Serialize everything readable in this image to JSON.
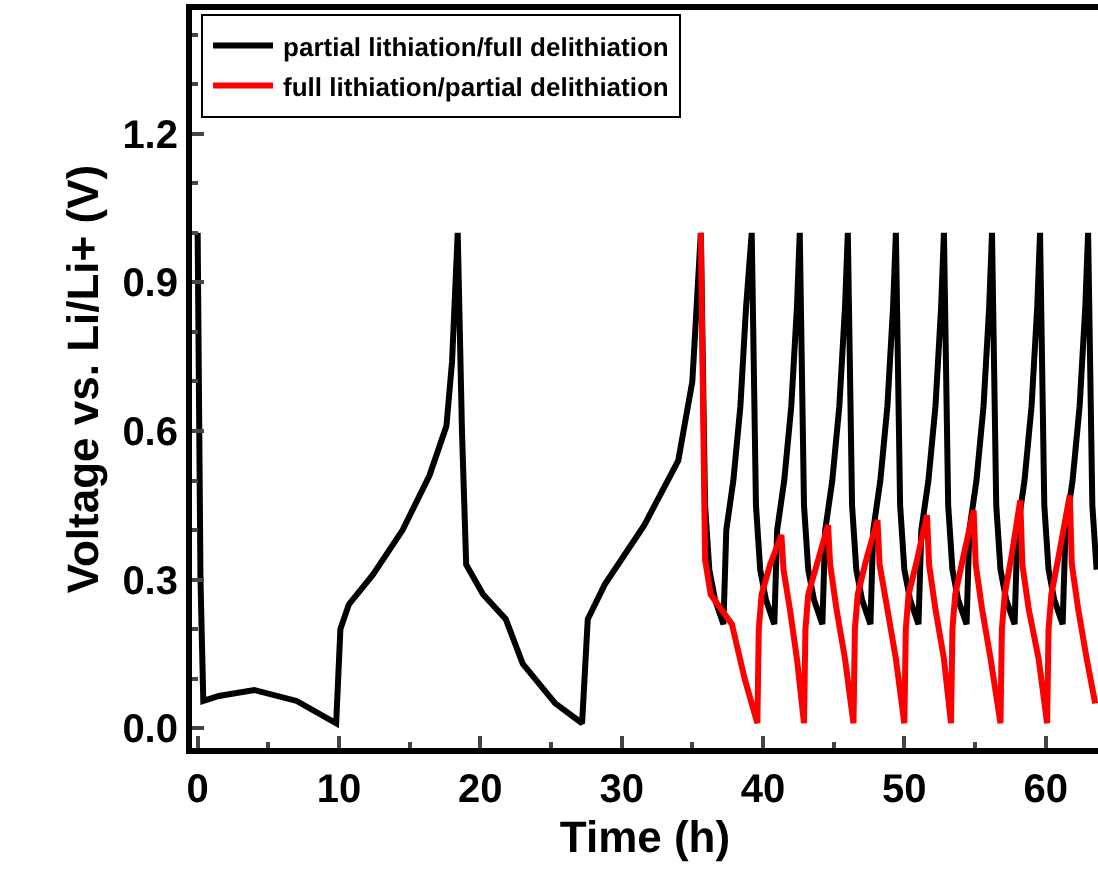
{
  "chart_data": {
    "type": "line",
    "xlabel": "Time (h)",
    "ylabel": "Voltage vs. Li/Li+ (V)",
    "xlim": [
      -0.4,
      63.7
    ],
    "xticks": [
      0,
      10,
      20,
      30,
      40,
      50,
      60
    ],
    "ylim": [
      -0.04,
      1.45
    ],
    "yticks": [
      {
        "value": 0,
        "label": "0.0"
      },
      0.3,
      0.6,
      0.9,
      1.2
    ],
    "grid": false,
    "legend": "top left",
    "line_style": "solid",
    "marker": "none",
    "series": [
      {
        "name": "partial lithiation/full delithiation",
        "color": "#000000",
        "x": [
          0,
          0.2,
          0.4,
          1.5,
          4,
          7,
          9.8,
          10.1,
          10.7,
          12.4,
          14.5,
          16.4,
          17.6,
          18.0,
          18.4,
          18.7,
          19.0,
          20.2,
          21.8,
          23.0,
          25.3,
          27.2,
          27.6,
          28.8,
          31.6,
          34.0,
          35.0,
          35.6,
          35.9,
          36.2,
          36.6,
          37.2,
          37.4,
          37.9,
          38.4,
          38.8,
          39.2,
          39.5,
          39.8,
          40.2,
          40.8,
          41.0,
          41.5,
          42.0,
          42.4,
          42.6,
          42.9,
          43.2,
          43.6,
          44.2,
          44.4,
          44.9,
          45.4,
          45.8,
          46.0,
          46.3,
          46.6,
          47.0,
          47.6,
          47.8,
          48.3,
          48.8,
          49.2,
          49.4,
          49.7,
          50.0,
          50.4,
          51.0,
          51.2,
          51.7,
          52.2,
          52.6,
          52.8,
          53.1,
          53.4,
          53.8,
          54.4,
          54.6,
          55.1,
          55.6,
          56.0,
          56.2,
          56.5,
          56.8,
          57.2,
          57.8,
          58.0,
          58.5,
          59.0,
          59.4,
          59.6,
          59.9,
          60.2,
          60.6,
          61.2,
          61.4,
          61.9,
          62.4,
          62.8,
          63.0,
          63.3,
          63.6
        ],
        "values": [
          1.0,
          0.3,
          0.055,
          0.065,
          0.077,
          0.055,
          0.01,
          0.2,
          0.25,
          0.31,
          0.4,
          0.51,
          0.61,
          0.74,
          1.0,
          0.6,
          0.33,
          0.27,
          0.22,
          0.13,
          0.05,
          0.01,
          0.22,
          0.29,
          0.41,
          0.54,
          0.7,
          1.0,
          0.45,
          0.32,
          0.26,
          0.21,
          0.4,
          0.5,
          0.65,
          0.85,
          1.0,
          0.45,
          0.32,
          0.26,
          0.21,
          0.4,
          0.5,
          0.65,
          0.85,
          1.0,
          0.45,
          0.32,
          0.26,
          0.21,
          0.4,
          0.5,
          0.65,
          0.85,
          1.0,
          0.45,
          0.32,
          0.26,
          0.21,
          0.4,
          0.5,
          0.65,
          0.85,
          1.0,
          0.45,
          0.32,
          0.26,
          0.21,
          0.4,
          0.5,
          0.65,
          0.85,
          1.0,
          0.45,
          0.32,
          0.26,
          0.21,
          0.4,
          0.5,
          0.65,
          0.85,
          1.0,
          0.45,
          0.32,
          0.26,
          0.21,
          0.4,
          0.5,
          0.65,
          0.85,
          1.0,
          0.45,
          0.32,
          0.26,
          0.21,
          0.4,
          0.5,
          0.65,
          0.85,
          1.0,
          0.45,
          0.32
        ]
      },
      {
        "name": "full lithiation/partial delithiation",
        "color": "#ff0000",
        "x": [
          35.6,
          35.9,
          36.3,
          37.8,
          38.7,
          39.6,
          39.7,
          39.9,
          40.5,
          41.3,
          41.45,
          41.9,
          42.4,
          42.9,
          43.0,
          43.2,
          43.8,
          44.6,
          44.75,
          45.2,
          45.8,
          46.4,
          46.5,
          46.7,
          47.3,
          48.1,
          48.25,
          48.8,
          49.4,
          50.0,
          50.1,
          50.3,
          50.9,
          51.6,
          51.75,
          52.2,
          52.8,
          53.3,
          53.4,
          53.6,
          54.2,
          54.9,
          55.05,
          55.5,
          56.1,
          56.8,
          56.9,
          57.1,
          57.6,
          58.2,
          58.35,
          58.8,
          59.5,
          60.1,
          60.2,
          60.4,
          61.0,
          61.7,
          61.85,
          62.3,
          62.9,
          63.5
        ],
        "values": [
          1.0,
          0.34,
          0.27,
          0.21,
          0.1,
          0.01,
          0.2,
          0.27,
          0.33,
          0.39,
          0.32,
          0.24,
          0.14,
          0.01,
          0.2,
          0.27,
          0.33,
          0.41,
          0.33,
          0.24,
          0.14,
          0.01,
          0.2,
          0.27,
          0.34,
          0.42,
          0.33,
          0.24,
          0.14,
          0.01,
          0.2,
          0.27,
          0.34,
          0.43,
          0.33,
          0.24,
          0.14,
          0.01,
          0.2,
          0.27,
          0.35,
          0.44,
          0.33,
          0.24,
          0.14,
          0.01,
          0.2,
          0.27,
          0.35,
          0.46,
          0.33,
          0.24,
          0.14,
          0.01,
          0.2,
          0.27,
          0.36,
          0.47,
          0.33,
          0.24,
          0.14,
          0.05
        ]
      }
    ]
  }
}
